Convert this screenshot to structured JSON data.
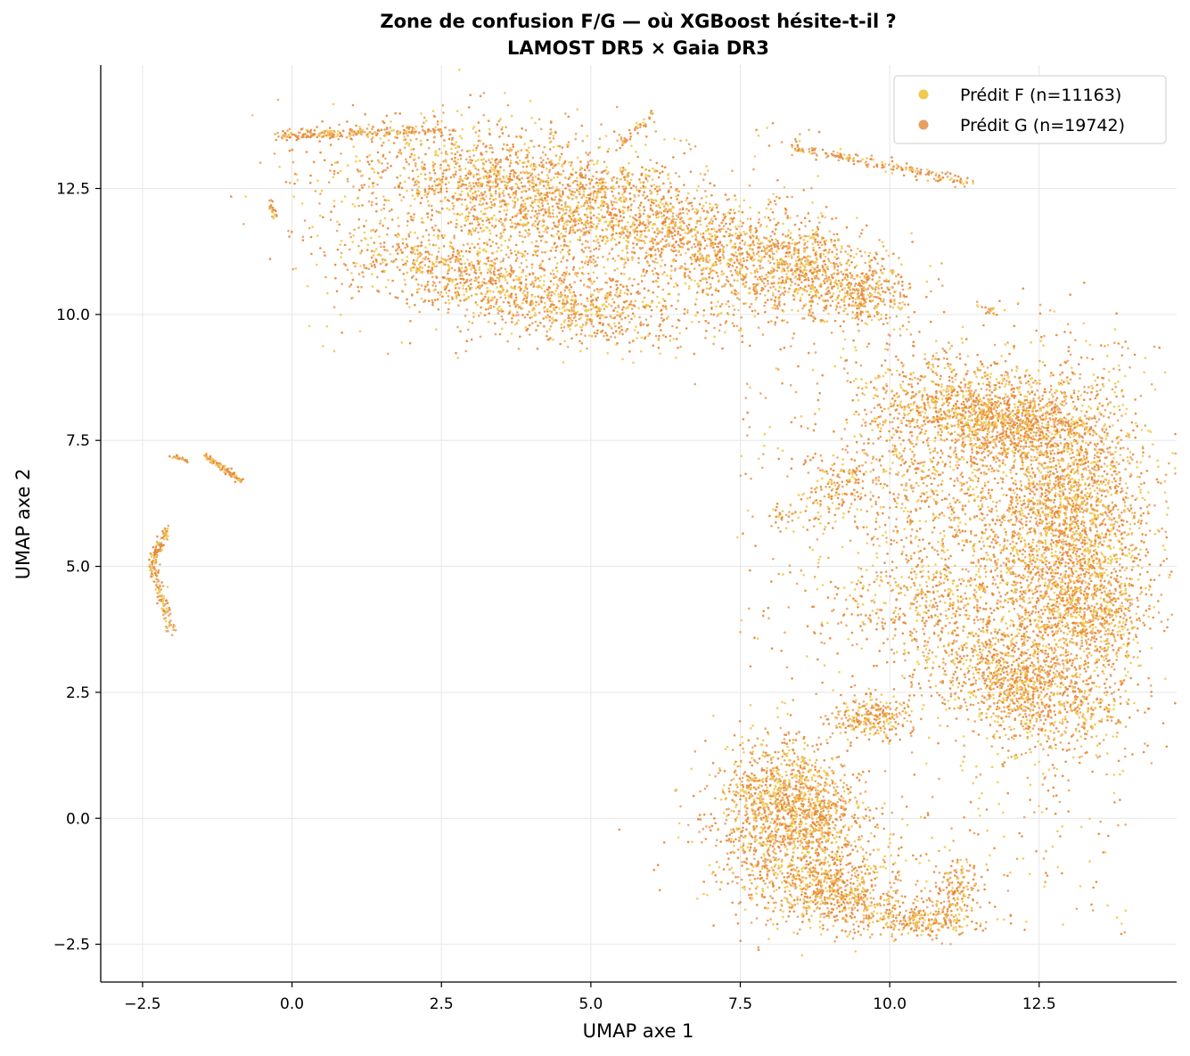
{
  "chart_data": {
    "type": "scatter",
    "title": "Zone de confusion F/G — où XGBoost hésite-t-il ?",
    "subtitle": "LAMOST DR5 × Gaia DR3",
    "xlabel": "UMAP axe 1",
    "ylabel": "UMAP axe 2",
    "xlim": [
      -3.2,
      14.8
    ],
    "ylim": [
      -3.25,
      14.95
    ],
    "xticks": [
      {
        "v": -2.5,
        "label": "−2.5"
      },
      {
        "v": 0.0,
        "label": "0.0"
      },
      {
        "v": 2.5,
        "label": "2.5"
      },
      {
        "v": 5.0,
        "label": "5.0"
      },
      {
        "v": 7.5,
        "label": "7.5"
      },
      {
        "v": 10.0,
        "label": "10.0"
      },
      {
        "v": 12.5,
        "label": "12.5"
      }
    ],
    "yticks": [
      {
        "v": -2.5,
        "label": "−2.5"
      },
      {
        "v": 0.0,
        "label": "0.0"
      },
      {
        "v": 2.5,
        "label": "2.5"
      },
      {
        "v": 5.0,
        "label": "5.0"
      },
      {
        "v": 7.5,
        "label": "7.5"
      },
      {
        "v": 10.0,
        "label": "10.0"
      },
      {
        "v": 12.5,
        "label": "12.5"
      }
    ],
    "grid": true,
    "legend_position": "top-right",
    "series": [
      {
        "name": "Prédit F (n=11163)",
        "color": "#f2c94c"
      },
      {
        "name": "Prédit G (n=19742)",
        "color": "#e8a060"
      }
    ],
    "point_color_dense": "#e67e22",
    "regions": [
      {
        "shape": "blob",
        "cx": 3.8,
        "cy": 12.5,
        "sx": 1.5,
        "sy": 0.6,
        "angle": -12,
        "n": 1400,
        "fshare": 0.3
      },
      {
        "shape": "blob",
        "cx": 6.8,
        "cy": 11.4,
        "sx": 1.8,
        "sy": 0.55,
        "angle": -22,
        "n": 1400,
        "fshare": 0.3
      },
      {
        "shape": "blob",
        "cx": 2.8,
        "cy": 10.8,
        "sx": 1.2,
        "sy": 0.35,
        "angle": -15,
        "n": 650,
        "fshare": 0.3
      },
      {
        "shape": "blob",
        "cx": 4.8,
        "cy": 10.1,
        "sx": 1.0,
        "sy": 0.3,
        "angle": -8,
        "n": 450,
        "fshare": 0.3
      },
      {
        "shape": "blob",
        "cx": 8.5,
        "cy": 10.9,
        "sx": 0.8,
        "sy": 0.5,
        "angle": -20,
        "n": 550,
        "fshare": 0.3
      },
      {
        "shape": "blob",
        "cx": 9.6,
        "cy": 10.4,
        "sx": 0.35,
        "sy": 0.25,
        "angle": 0,
        "n": 200,
        "fshare": 0.3
      },
      {
        "shape": "blob",
        "cx": 4.2,
        "cy": 11.3,
        "sx": 1.6,
        "sy": 0.8,
        "angle": -15,
        "n": 500,
        "fshare": 0.4
      },
      {
        "shape": "arc",
        "x0": -0.2,
        "y0": 13.55,
        "x1": 2.5,
        "y1": 13.65,
        "n": 220,
        "w": 0.05,
        "fshare": 0.2
      },
      {
        "shape": "arc",
        "x0": 5.5,
        "y0": 13.4,
        "x1": 6.1,
        "y1": 14.0,
        "n": 40,
        "w": 0.05,
        "fshare": 0.2
      },
      {
        "shape": "arc",
        "x0": 8.3,
        "y0": 13.35,
        "x1": 11.4,
        "y1": 12.6,
        "n": 180,
        "w": 0.06,
        "fshare": 0.2
      },
      {
        "shape": "arc",
        "x0": 11.5,
        "y0": 10.2,
        "x1": 11.8,
        "y1": 10.0,
        "n": 20,
        "w": 0.04,
        "fshare": 0.2
      },
      {
        "shape": "arc",
        "x0": -0.35,
        "y0": 12.3,
        "x1": -0.3,
        "y1": 11.95,
        "n": 25,
        "w": 0.03,
        "fshare": 0.2
      },
      {
        "shape": "blob",
        "cx": 11.2,
        "cy": 8.1,
        "sx": 0.8,
        "sy": 0.5,
        "angle": -10,
        "n": 900,
        "fshare": 0.3
      },
      {
        "shape": "blob",
        "cx": 13.0,
        "cy": 6.0,
        "sx": 0.7,
        "sy": 1.5,
        "angle": 0,
        "n": 2300,
        "fshare": 0.3
      },
      {
        "shape": "blob",
        "cx": 12.2,
        "cy": 7.8,
        "sx": 0.6,
        "sy": 0.4,
        "angle": 0,
        "n": 500,
        "fshare": 0.3
      },
      {
        "shape": "blob",
        "cx": 13.3,
        "cy": 4.1,
        "sx": 0.5,
        "sy": 0.5,
        "angle": 0,
        "n": 450,
        "fshare": 0.3
      },
      {
        "shape": "blob",
        "cx": 12.3,
        "cy": 2.6,
        "sx": 0.9,
        "sy": 0.55,
        "angle": -25,
        "n": 1100,
        "fshare": 0.3
      },
      {
        "shape": "blob",
        "cx": 11.8,
        "cy": 5.0,
        "sx": 1.2,
        "sy": 1.6,
        "angle": 0,
        "n": 800,
        "fshare": 0.3
      },
      {
        "shape": "blob",
        "cx": 10.6,
        "cy": 6.6,
        "sx": 0.9,
        "sy": 1.0,
        "angle": 0,
        "n": 400,
        "fshare": 0.35
      },
      {
        "shape": "blob",
        "cx": 10.7,
        "cy": 4.3,
        "sx": 0.9,
        "sy": 0.5,
        "angle": 0,
        "n": 300,
        "fshare": 0.35
      },
      {
        "shape": "blob",
        "cx": 9.7,
        "cy": 2.0,
        "sx": 0.35,
        "sy": 0.2,
        "angle": 0,
        "n": 250,
        "fshare": 0.3
      },
      {
        "shape": "blob",
        "cx": 9.2,
        "cy": 6.7,
        "sx": 0.3,
        "sy": 0.5,
        "angle": -35,
        "n": 180,
        "fshare": 0.3
      },
      {
        "shape": "blob",
        "cx": 8.2,
        "cy": 0.4,
        "sx": 0.55,
        "sy": 0.6,
        "angle": 0,
        "n": 900,
        "fshare": 0.3
      },
      {
        "shape": "blob",
        "cx": 8.5,
        "cy": -0.9,
        "sx": 0.8,
        "sy": 0.6,
        "angle": -20,
        "n": 800,
        "fshare": 0.3
      },
      {
        "shape": "blob",
        "cx": 9.2,
        "cy": -1.6,
        "sx": 0.4,
        "sy": 0.3,
        "angle": 0,
        "n": 300,
        "fshare": 0.3
      },
      {
        "shape": "blob",
        "cx": 10.5,
        "cy": -2.0,
        "sx": 0.45,
        "sy": 0.2,
        "angle": 0,
        "n": 250,
        "fshare": 0.3
      },
      {
        "shape": "blob",
        "cx": 11.1,
        "cy": -1.4,
        "sx": 0.2,
        "sy": 0.35,
        "angle": 0,
        "n": 150,
        "fshare": 0.3
      },
      {
        "shape": "blob",
        "cx": 8.9,
        "cy": 0.2,
        "sx": 0.3,
        "sy": 0.4,
        "angle": 0,
        "n": 200,
        "fshare": 0.3
      },
      {
        "shape": "blob",
        "cx": 8.3,
        "cy": 6.0,
        "sx": 0.15,
        "sy": 0.08,
        "angle": 0,
        "n": 25,
        "fshare": 0.3
      },
      {
        "shape": "arc",
        "x0": -1.45,
        "y0": 7.2,
        "x1": -0.85,
        "y1": 6.7,
        "n": 90,
        "w": 0.03,
        "fshare": 0.2
      },
      {
        "shape": "arc",
        "x0": -2.0,
        "y0": 7.2,
        "x1": -1.75,
        "y1": 7.1,
        "n": 20,
        "w": 0.03,
        "fshare": 0.2
      },
      {
        "shape": "arc",
        "x0": -2.1,
        "y0": 5.8,
        "x1": -2.35,
        "y1": 5.0,
        "n": 80,
        "w": 0.04,
        "fshare": 0.2
      },
      {
        "shape": "arc",
        "x0": -2.35,
        "y0": 5.0,
        "x1": -2.0,
        "y1": 3.7,
        "n": 100,
        "w": 0.04,
        "fshare": 0.2
      },
      {
        "shape": "scatter",
        "x0": 0.0,
        "x1": 9.0,
        "y0": 9.2,
        "y1": 13.8,
        "n": 300,
        "fshare": 0.4
      },
      {
        "shape": "scatter",
        "x0": 7.5,
        "x1": 14.0,
        "y0": -2.3,
        "y1": 9.0,
        "n": 700,
        "fshare": 0.4
      }
    ]
  }
}
